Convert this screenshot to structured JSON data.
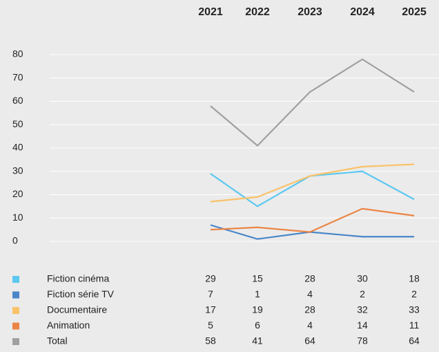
{
  "chart_data": {
    "type": "line",
    "categories": [
      "2021",
      "2022",
      "2023",
      "2024",
      "2025"
    ],
    "series": [
      {
        "name": "Fiction cinéma",
        "color": "#5bc8f0",
        "values": [
          29,
          15,
          28,
          30,
          18
        ]
      },
      {
        "name": "Fiction série TV",
        "color": "#4a86c8",
        "values": [
          7,
          1,
          4,
          2,
          2
        ]
      },
      {
        "name": "Documentaire",
        "color": "#f9c26a",
        "values": [
          17,
          19,
          28,
          32,
          33
        ]
      },
      {
        "name": "Animation",
        "color": "#eb8545",
        "values": [
          5,
          6,
          4,
          14,
          11
        ]
      },
      {
        "name": "Total",
        "color": "#a0a0a0",
        "values": [
          58,
          41,
          64,
          78,
          64
        ]
      }
    ],
    "ylim": [
      0,
      80
    ],
    "yticks": [
      0,
      10,
      20,
      30,
      40,
      50,
      60,
      70,
      80
    ],
    "grid": true
  }
}
